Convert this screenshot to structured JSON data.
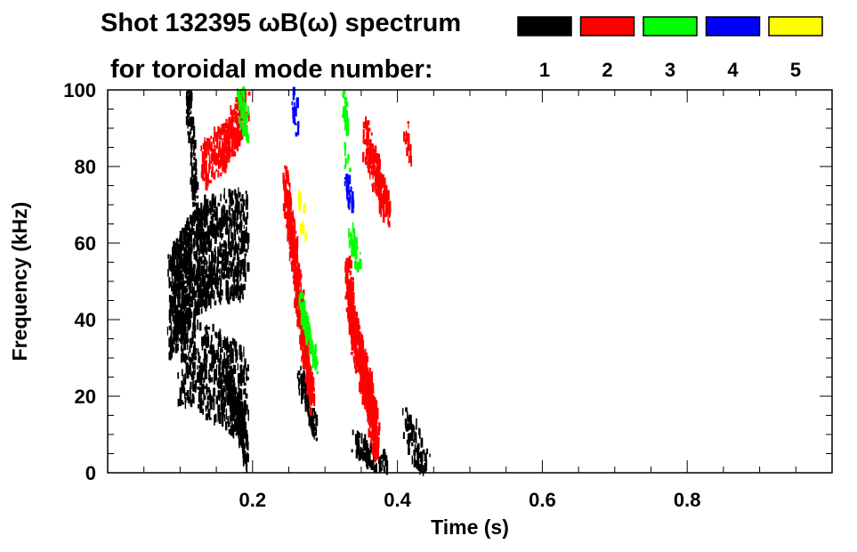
{
  "chart_data": {
    "type": "heatmap",
    "title_line1": "Shot 132395 ωB(ω) spectrum",
    "title_line2": "for toroidal mode number:",
    "xlabel": "Time (s)",
    "ylabel": "Frequency (kHz)",
    "xlim": [
      0,
      1.0
    ],
    "ylim": [
      0,
      100
    ],
    "xticks": [
      0.2,
      0.4,
      0.6,
      0.8
    ],
    "xtick_labels": [
      "0.2",
      "0.4",
      "0.6",
      "0.8"
    ],
    "yticks": [
      0,
      20,
      40,
      60,
      80,
      100
    ],
    "ytick_labels": [
      "0",
      "20",
      "40",
      "60",
      "80",
      "100"
    ],
    "legend": [
      {
        "label": "1",
        "color": "#000000"
      },
      {
        "label": "2",
        "color": "#ff0000"
      },
      {
        "label": "3",
        "color": "#00ff00"
      },
      {
        "label": "4",
        "color": "#0000ff"
      },
      {
        "label": "5",
        "color": "#ffff00"
      }
    ],
    "features": [
      {
        "mode": 1,
        "path": [
          [
            0.085,
            44
          ],
          [
            0.11,
            52
          ],
          [
            0.14,
            58
          ],
          [
            0.19,
            60
          ]
        ],
        "halfwidth_khz": 14,
        "density": 0.55
      },
      {
        "mode": 1,
        "path": [
          [
            0.1,
            30
          ],
          [
            0.15,
            25
          ],
          [
            0.19,
            20
          ]
        ],
        "halfwidth_khz": 12,
        "density": 0.35
      },
      {
        "mode": 1,
        "path": [
          [
            0.11,
            100
          ],
          [
            0.12,
            70
          ]
        ],
        "halfwidth_khz": 3,
        "density": 0.4
      },
      {
        "mode": 1,
        "path": [
          [
            0.165,
            25
          ],
          [
            0.19,
            5
          ]
        ],
        "halfwidth_khz": 4,
        "density": 0.7
      },
      {
        "mode": 1,
        "path": [
          [
            0.265,
            25
          ],
          [
            0.285,
            11
          ]
        ],
        "halfwidth_khz": 3,
        "density": 0.65
      },
      {
        "mode": 1,
        "path": [
          [
            0.34,
            8
          ],
          [
            0.385,
            1
          ]
        ],
        "halfwidth_khz": 3,
        "density": 0.7
      },
      {
        "mode": 1,
        "path": [
          [
            0.41,
            12
          ],
          [
            0.44,
            2
          ]
        ],
        "halfwidth_khz": 5,
        "density": 0.3
      },
      {
        "mode": 2,
        "path": [
          [
            0.13,
            80
          ],
          [
            0.16,
            85
          ],
          [
            0.19,
            95
          ]
        ],
        "halfwidth_khz": 6,
        "density": 0.55
      },
      {
        "mode": 2,
        "path": [
          [
            0.245,
            75
          ],
          [
            0.26,
            50
          ],
          [
            0.28,
            20
          ]
        ],
        "halfwidth_khz": 5,
        "density": 0.6
      },
      {
        "mode": 2,
        "path": [
          [
            0.33,
            52
          ],
          [
            0.34,
            35
          ],
          [
            0.36,
            20
          ],
          [
            0.37,
            8
          ]
        ],
        "halfwidth_khz": 6,
        "density": 0.65
      },
      {
        "mode": 2,
        "path": [
          [
            0.355,
            87
          ],
          [
            0.37,
            78
          ],
          [
            0.385,
            68
          ]
        ],
        "halfwidth_khz": 5,
        "density": 0.55
      },
      {
        "mode": 2,
        "path": [
          [
            0.41,
            90
          ],
          [
            0.415,
            82
          ]
        ],
        "halfwidth_khz": 2,
        "density": 0.4
      },
      {
        "mode": 3,
        "path": [
          [
            0.18,
            100
          ],
          [
            0.19,
            90
          ]
        ],
        "halfwidth_khz": 4,
        "density": 0.5
      },
      {
        "mode": 3,
        "path": [
          [
            0.265,
            45
          ],
          [
            0.285,
            28
          ]
        ],
        "halfwidth_khz": 2,
        "density": 0.8
      },
      {
        "mode": 3,
        "path": [
          [
            0.325,
            100
          ],
          [
            0.33,
            80
          ]
        ],
        "halfwidth_khz": 2,
        "density": 0.3
      },
      {
        "mode": 3,
        "path": [
          [
            0.335,
            62
          ],
          [
            0.345,
            55
          ]
        ],
        "halfwidth_khz": 2,
        "density": 0.7
      },
      {
        "mode": 4,
        "path": [
          [
            0.255,
            100
          ],
          [
            0.26,
            88
          ]
        ],
        "halfwidth_khz": 1.5,
        "density": 0.5
      },
      {
        "mode": 4,
        "path": [
          [
            0.33,
            76
          ],
          [
            0.335,
            69
          ]
        ],
        "halfwidth_khz": 2,
        "density": 0.7
      },
      {
        "mode": 5,
        "path": [
          [
            0.265,
            72
          ],
          [
            0.27,
            60
          ]
        ],
        "halfwidth_khz": 1,
        "density": 0.25
      }
    ]
  }
}
